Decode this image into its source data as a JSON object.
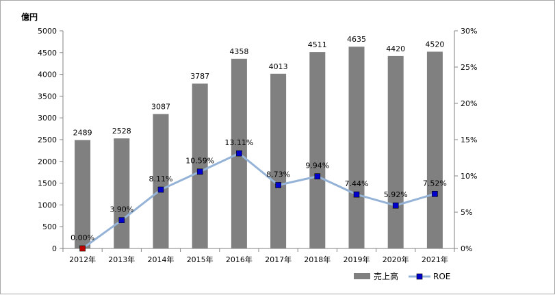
{
  "chart_data": {
    "type": "bar",
    "y_unit_label": "億円",
    "categories": [
      "2012年",
      "2013年",
      "2014年",
      "2015年",
      "2016年",
      "2017年",
      "2018年",
      "2019年",
      "2020年",
      "2021年"
    ],
    "series": [
      {
        "name": "売上高",
        "type": "bar",
        "axis": "left",
        "values": [
          2489,
          2528,
          3087,
          3787,
          4358,
          4013,
          4511,
          4635,
          4420,
          4520
        ],
        "labels": [
          "2489",
          "2528",
          "3087",
          "3787",
          "4358",
          "4013",
          "4511",
          "4635",
          "4420",
          "4520"
        ],
        "color": "#808080"
      },
      {
        "name": "ROE",
        "type": "line",
        "axis": "right",
        "values": [
          0.0,
          3.9,
          8.11,
          10.59,
          13.11,
          8.73,
          9.94,
          7.44,
          5.92,
          7.52
        ],
        "labels": [
          "0.00%",
          "3.90%",
          "8.11%",
          "10.59%",
          "13.11%",
          "8.73%",
          "9.94%",
          "7.44%",
          "5.92%",
          "7.52%"
        ],
        "line_color": "#95b3d7",
        "marker_color": "#0000cc",
        "first_marker_color": "#c00000"
      }
    ],
    "ylim_left": [
      0,
      5000
    ],
    "left_ticks": [
      "0",
      "500",
      "1000",
      "1500",
      "2000",
      "2500",
      "3000",
      "3500",
      "4000",
      "4500",
      "5000"
    ],
    "ylim_right": [
      0,
      30
    ],
    "right_ticks": [
      "0%",
      "5%",
      "10%",
      "15%",
      "20%",
      "25%",
      "30%"
    ],
    "grid": false,
    "legend_position": "bottom-right"
  }
}
